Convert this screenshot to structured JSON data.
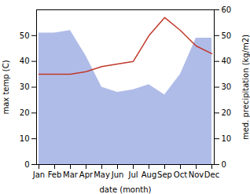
{
  "chart_data": {
    "type": "line",
    "xlabel": "date (month)",
    "ylabel": "max temp (C)",
    "y2label": "med. precipitation (kg/m2)",
    "categories": [
      "Jan",
      "Feb",
      "Mar",
      "Apr",
      "May",
      "Jun",
      "Jul",
      "Aug",
      "Sep",
      "Oct",
      "Nov",
      "Dec"
    ],
    "series": [
      {
        "type": "area",
        "axis": "y2",
        "color": "#b0bce8",
        "values": [
          51,
          51,
          52,
          42,
          30,
          28,
          29,
          31,
          27,
          35,
          49,
          49
        ]
      },
      {
        "type": "line",
        "color": "#c0392b",
        "values": [
          35,
          35,
          35,
          36,
          38,
          39,
          40,
          50,
          57,
          52,
          46,
          43
        ]
      }
    ],
    "ylim": [
      0,
      60
    ],
    "yticks": [
      0,
      10,
      20,
      30,
      40,
      50
    ],
    "y2lim": [
      0,
      60
    ],
    "y2ticks": [
      0,
      10,
      20,
      30,
      40,
      50,
      60
    ]
  }
}
